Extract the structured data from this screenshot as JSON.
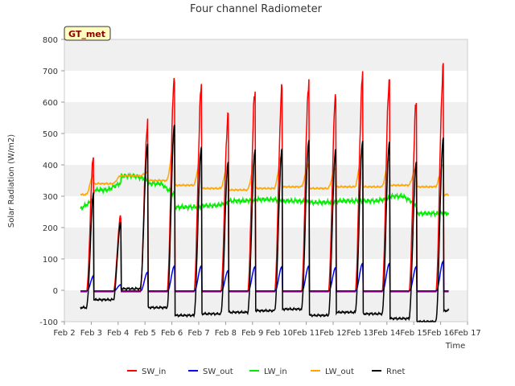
{
  "chart_data": {
    "type": "line",
    "title": "Four channel Radiometer",
    "xlabel": "Time",
    "ylabel": "Solar Radiation (W/m2)",
    "badge": "GT_met",
    "ylim": [
      -100,
      800
    ],
    "yticks": [
      -100,
      0,
      100,
      200,
      300,
      400,
      500,
      600,
      700,
      800
    ],
    "xlim": [
      2,
      17
    ],
    "xticks": [
      2,
      3,
      4,
      5,
      6,
      7,
      8,
      9,
      10,
      11,
      12,
      13,
      14,
      15,
      16,
      17
    ],
    "xtick_labels": [
      "Feb 2",
      "Feb 3",
      "Feb 4",
      "Feb 5",
      "Feb 6",
      "Feb 7",
      "Feb 8",
      "Feb 9",
      "Feb 10",
      "Feb 11",
      "Feb 12",
      "Feb 13",
      "Feb 14",
      "Feb 15",
      "Feb 16",
      "Feb 17"
    ],
    "grid": "horizontal bands",
    "legend_position": "bottom",
    "colors": {
      "SW_in": "#ff0000",
      "SW_out": "#0000ff",
      "LW_in": "#00ee00",
      "LW_out": "#ffa500",
      "Rnet": "#000000",
      "band": "#f0f0f0"
    },
    "days": [
      2.6,
      3.6,
      4.6,
      5.6,
      6.6,
      7.6,
      8.6,
      9.6,
      10.6,
      11.6,
      12.6,
      13.6,
      14.6,
      15.6,
      16.6
    ],
    "series": [
      {
        "name": "SW_in",
        "night": -5,
        "peaks": [
          450,
          240,
          535,
          690,
          650,
          570,
          645,
          645,
          675,
          625,
          688,
          685,
          605,
          715
        ]
      },
      {
        "name": "SW_out",
        "night": -2,
        "peaks": [
          50,
          20,
          60,
          80,
          80,
          65,
          78,
          78,
          80,
          75,
          88,
          88,
          78,
          95
        ]
      },
      {
        "name": "LW_in",
        "daily": [
          260,
          320,
          365,
          340,
          265,
          270,
          285,
          290,
          285,
          280,
          285,
          285,
          300,
          245,
          245
        ]
      },
      {
        "name": "LW_out",
        "daily": [
          305,
          340,
          365,
          350,
          335,
          325,
          320,
          325,
          330,
          325,
          330,
          330,
          335,
          330,
          305
        ],
        "peaks": [
          370,
          365,
          375,
          480,
          430,
          400,
          410,
          430,
          400,
          390,
          440,
          420,
          390,
          400
        ]
      },
      {
        "name": "Rnet",
        "night": [
          -55,
          -30,
          5,
          -55,
          -80,
          -75,
          -70,
          -65,
          -60,
          -80,
          -70,
          -75,
          -90,
          -100,
          -65
        ],
        "peaks": [
          320,
          215,
          465,
          530,
          455,
          410,
          450,
          450,
          480,
          450,
          475,
          475,
          410,
          485
        ]
      }
    ]
  }
}
